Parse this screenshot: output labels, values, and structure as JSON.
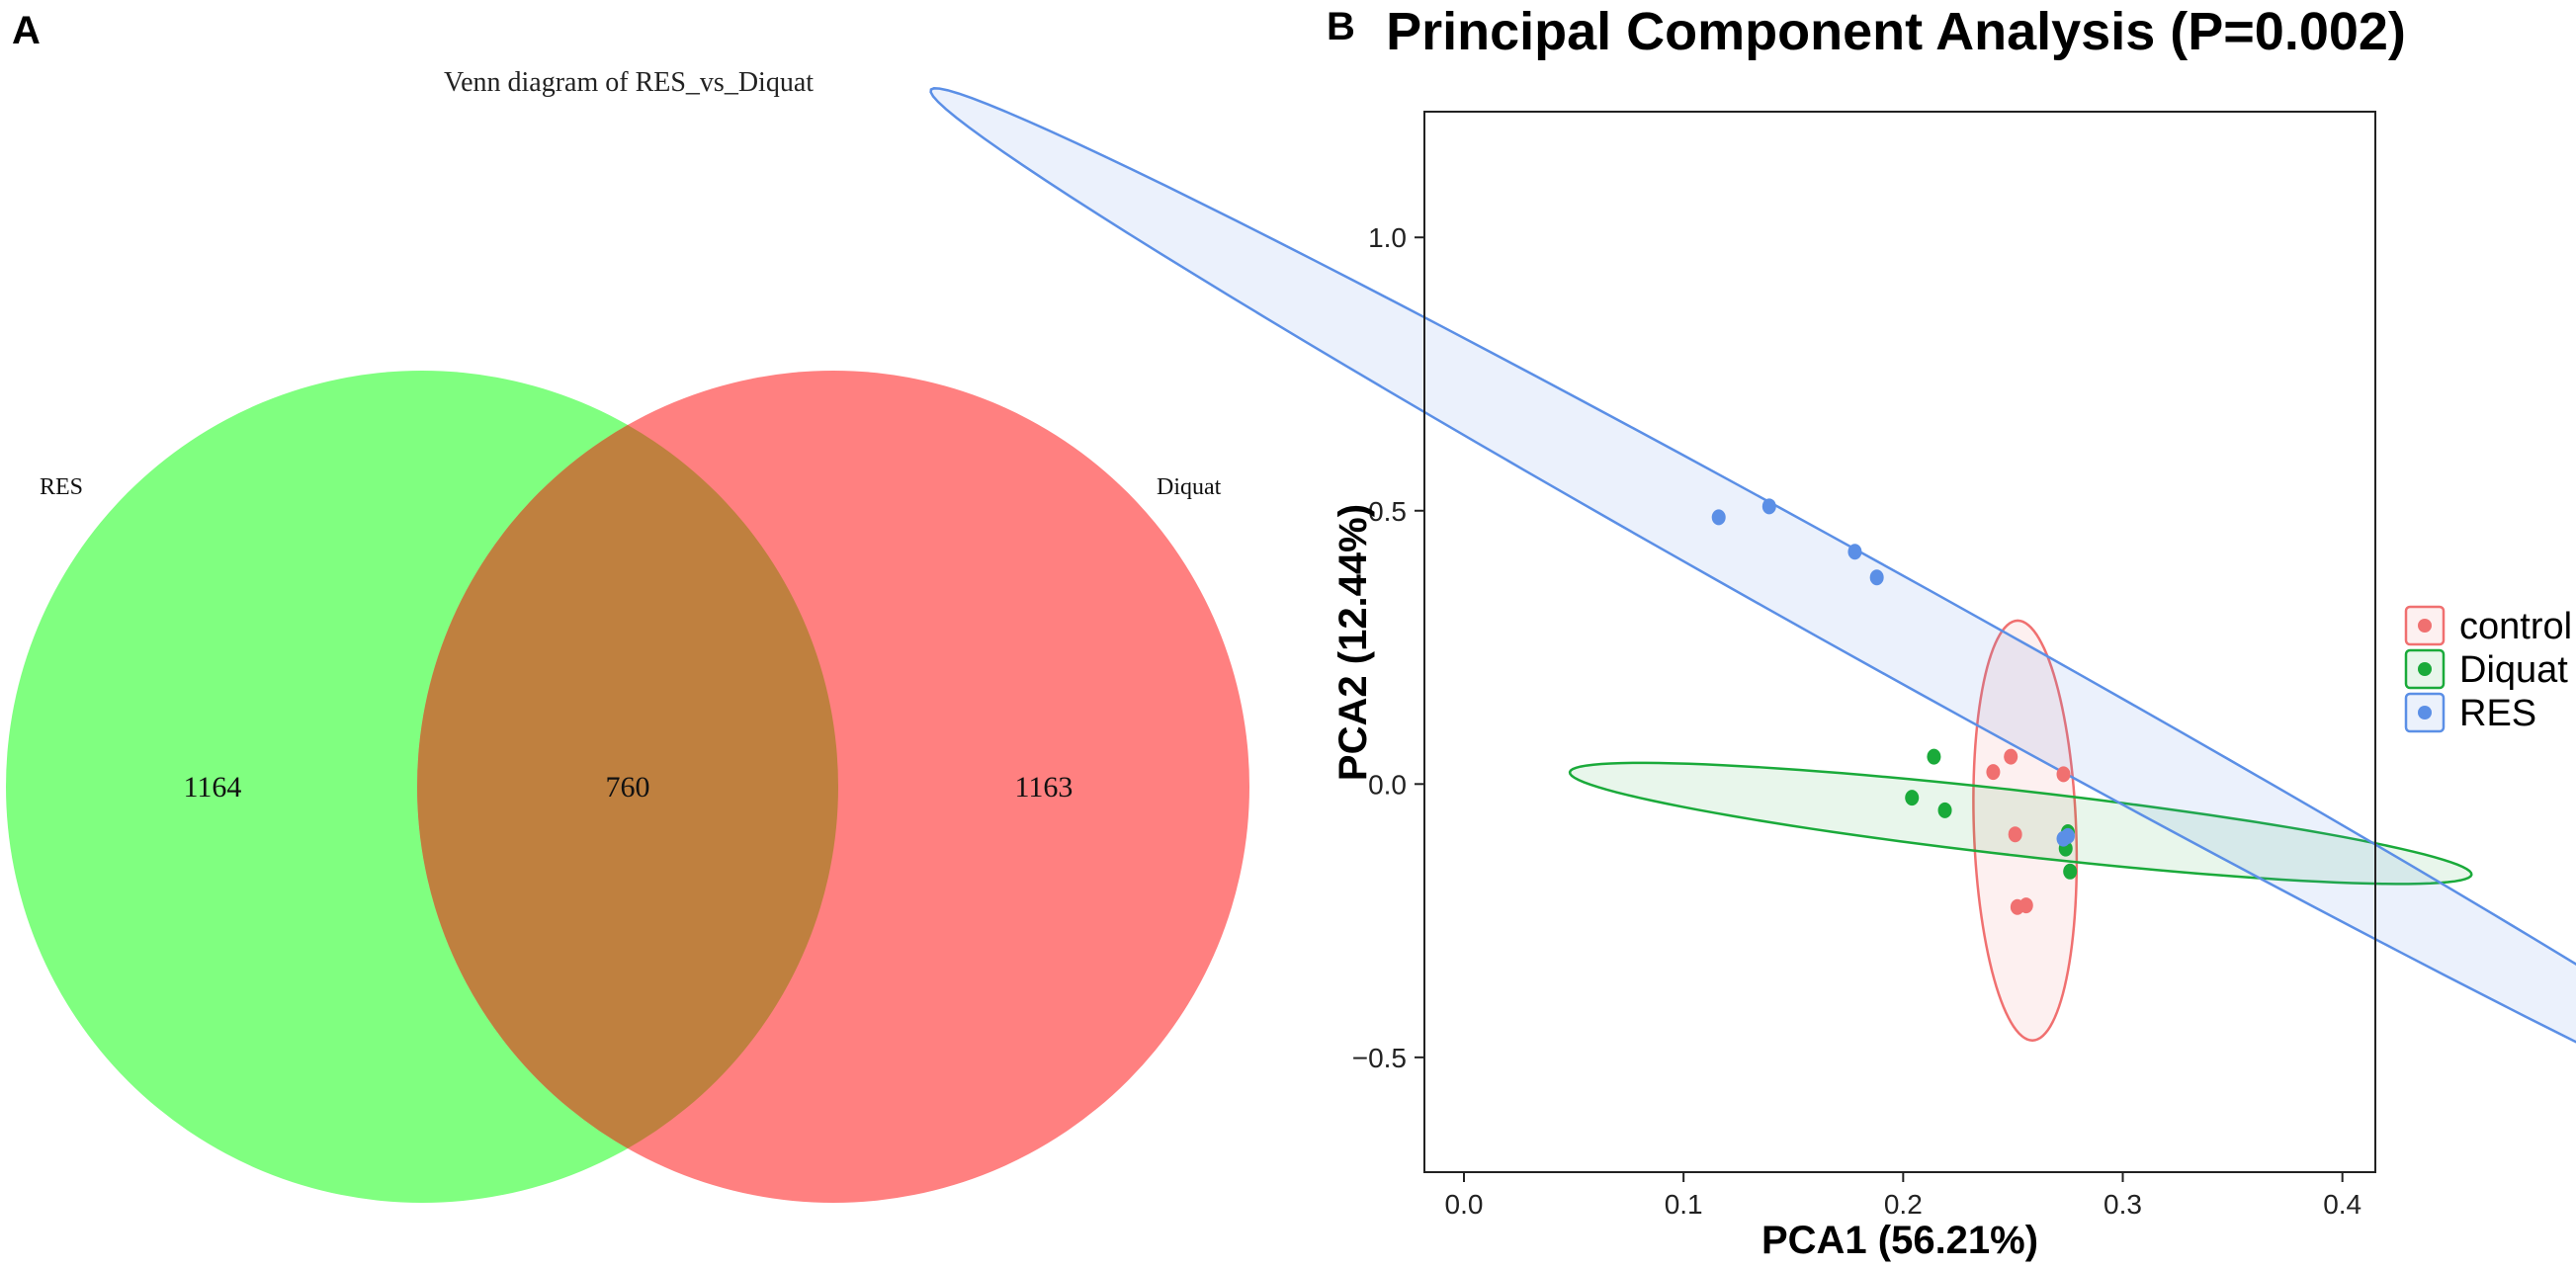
{
  "panels": {
    "a_letter": "A",
    "b_letter": "B"
  },
  "chart_data": [
    {
      "type": "venn",
      "title": "Venn diagram of RES_vs_Diquat",
      "sets": [
        {
          "name": "RES",
          "only": 1164,
          "color": "#80ff80"
        },
        {
          "name": "Diquat",
          "only": 1163,
          "color": "#ff8080"
        }
      ],
      "intersection": 760,
      "intersection_color": "#bf803f"
    },
    {
      "type": "scatter",
      "title": "Principal Component Analysis (P=0.002)",
      "xlabel": "PCA1 (56.21%)",
      "ylabel": "PCA2 (12.44%)",
      "xlim": [
        -0.018,
        0.415
      ],
      "ylim": [
        -0.71,
        1.23
      ],
      "xticks": [
        0.0,
        0.1,
        0.2,
        0.3,
        0.4
      ],
      "xtick_labels": [
        "0.0",
        "0.1",
        "0.2",
        "0.3",
        "0.4"
      ],
      "yticks": [
        -0.5,
        0.0,
        0.5,
        1.0
      ],
      "ytick_labels": [
        "−0.5",
        "0.0",
        "0.5",
        "1.0"
      ],
      "grid": false,
      "legend": "right",
      "series": [
        {
          "name": "control",
          "color": "#f07070",
          "fill": "rgba(240,112,112,0.10)",
          "points": [
            [
              0.241,
              0.022
            ],
            [
              0.249,
              0.05
            ],
            [
              0.251,
              -0.092
            ],
            [
              0.273,
              0.018
            ],
            [
              0.252,
              -0.225
            ],
            [
              0.256,
              -0.222
            ]
          ],
          "ellipse": {
            "cx": 0.2555,
            "cy": -0.085,
            "a": 0.384,
            "b": 0.02328,
            "angle_deg": -89.5
          }
        },
        {
          "name": "Diquat",
          "color": "#1aaa3a",
          "fill": "rgba(26,170,58,0.10)",
          "points": [
            [
              0.214,
              0.05
            ],
            [
              0.204,
              -0.025
            ],
            [
              0.219,
              -0.048
            ],
            [
              0.275,
              -0.088
            ],
            [
              0.274,
              -0.118
            ],
            [
              0.276,
              -0.16
            ]
          ],
          "ellipse": {
            "cx": 0.2535,
            "cy": -0.072,
            "a": 0.2269,
            "b": 0.05416,
            "angle_deg": -26
          }
        },
        {
          "name": "RES",
          "color": "#5b8fe6",
          "fill": "rgba(91,143,230,0.12)",
          "points": [
            [
              0.116,
              0.488
            ],
            [
              0.139,
              0.508
            ],
            [
              0.178,
              0.425
            ],
            [
              0.188,
              0.378
            ],
            [
              0.273,
              -0.1
            ],
            [
              0.275,
              -0.095
            ]
          ],
          "ellipse": {
            "cx": 0.1985,
            "cy": 0.285,
            "a": 1.0813,
            "b": 0.04058,
            "angle_deg": -66
          }
        }
      ]
    }
  ]
}
